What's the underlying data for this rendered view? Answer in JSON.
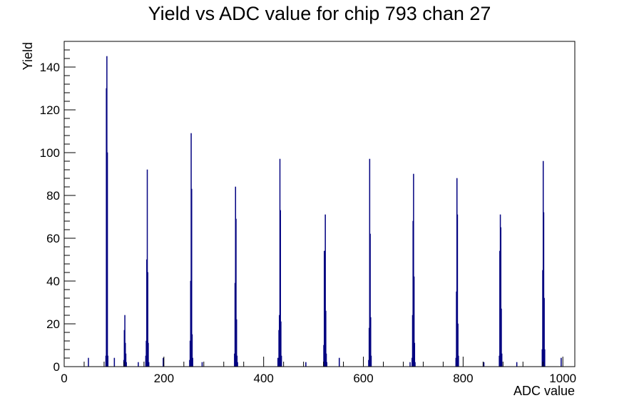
{
  "chart_data": {
    "type": "bar",
    "title": "Yield vs ADC value for chip 793 chan 27",
    "xlabel": "ADC value",
    "ylabel": "Yield",
    "xlim": [
      0,
      1024
    ],
    "ylim": [
      0,
      152
    ],
    "x_ticks": [
      0,
      200,
      400,
      600,
      800,
      1000
    ],
    "y_ticks": [
      0,
      20,
      40,
      60,
      80,
      100,
      120,
      140
    ],
    "color": "#000080",
    "grid": false,
    "legend": "none",
    "bins": [
      {
        "x": 48,
        "y": 4
      },
      {
        "x": 83,
        "y": 5
      },
      {
        "x": 84,
        "y": 130
      },
      {
        "x": 85,
        "y": 145
      },
      {
        "x": 86,
        "y": 100
      },
      {
        "x": 87,
        "y": 5
      },
      {
        "x": 100,
        "y": 4
      },
      {
        "x": 119,
        "y": 3
      },
      {
        "x": 120,
        "y": 17
      },
      {
        "x": 121,
        "y": 24
      },
      {
        "x": 122,
        "y": 11
      },
      {
        "x": 123,
        "y": 6
      },
      {
        "x": 124,
        "y": 2
      },
      {
        "x": 148,
        "y": 2
      },
      {
        "x": 163,
        "y": 5
      },
      {
        "x": 164,
        "y": 12
      },
      {
        "x": 165,
        "y": 50
      },
      {
        "x": 166,
        "y": 92
      },
      {
        "x": 167,
        "y": 44
      },
      {
        "x": 168,
        "y": 11
      },
      {
        "x": 169,
        "y": 2
      },
      {
        "x": 198,
        "y": 4
      },
      {
        "x": 251,
        "y": 3
      },
      {
        "x": 252,
        "y": 12
      },
      {
        "x": 253,
        "y": 40
      },
      {
        "x": 254,
        "y": 109
      },
      {
        "x": 255,
        "y": 83
      },
      {
        "x": 256,
        "y": 15
      },
      {
        "x": 257,
        "y": 4
      },
      {
        "x": 276,
        "y": 2
      },
      {
        "x": 341,
        "y": 6
      },
      {
        "x": 342,
        "y": 39
      },
      {
        "x": 343,
        "y": 84
      },
      {
        "x": 344,
        "y": 69
      },
      {
        "x": 345,
        "y": 22
      },
      {
        "x": 346,
        "y": 5
      },
      {
        "x": 347,
        "y": 2
      },
      {
        "x": 428,
        "y": 4
      },
      {
        "x": 430,
        "y": 17
      },
      {
        "x": 431,
        "y": 24
      },
      {
        "x": 432,
        "y": 97
      },
      {
        "x": 433,
        "y": 73
      },
      {
        "x": 434,
        "y": 21
      },
      {
        "x": 435,
        "y": 5
      },
      {
        "x": 484,
        "y": 2
      },
      {
        "x": 520,
        "y": 10
      },
      {
        "x": 521,
        "y": 54
      },
      {
        "x": 522,
        "y": 20
      },
      {
        "x": 523,
        "y": 71
      },
      {
        "x": 524,
        "y": 26
      },
      {
        "x": 525,
        "y": 6
      },
      {
        "x": 526,
        "y": 2
      },
      {
        "x": 551,
        "y": 4
      },
      {
        "x": 610,
        "y": 3
      },
      {
        "x": 611,
        "y": 18
      },
      {
        "x": 612,
        "y": 97
      },
      {
        "x": 613,
        "y": 62
      },
      {
        "x": 614,
        "y": 23
      },
      {
        "x": 615,
        "y": 5
      },
      {
        "x": 693,
        "y": 2
      },
      {
        "x": 697,
        "y": 4
      },
      {
        "x": 698,
        "y": 24
      },
      {
        "x": 699,
        "y": 68
      },
      {
        "x": 700,
        "y": 90
      },
      {
        "x": 701,
        "y": 42
      },
      {
        "x": 702,
        "y": 11
      },
      {
        "x": 703,
        "y": 2
      },
      {
        "x": 785,
        "y": 4
      },
      {
        "x": 786,
        "y": 35
      },
      {
        "x": 787,
        "y": 88
      },
      {
        "x": 788,
        "y": 71
      },
      {
        "x": 789,
        "y": 20
      },
      {
        "x": 790,
        "y": 5
      },
      {
        "x": 841,
        "y": 2
      },
      {
        "x": 872,
        "y": 5
      },
      {
        "x": 873,
        "y": 54
      },
      {
        "x": 874,
        "y": 71
      },
      {
        "x": 875,
        "y": 65
      },
      {
        "x": 876,
        "y": 27
      },
      {
        "x": 877,
        "y": 6
      },
      {
        "x": 907,
        "y": 2
      },
      {
        "x": 958,
        "y": 8
      },
      {
        "x": 959,
        "y": 45
      },
      {
        "x": 960,
        "y": 96
      },
      {
        "x": 961,
        "y": 72
      },
      {
        "x": 962,
        "y": 32
      },
      {
        "x": 963,
        "y": 8
      },
      {
        "x": 996,
        "y": 4
      }
    ]
  }
}
